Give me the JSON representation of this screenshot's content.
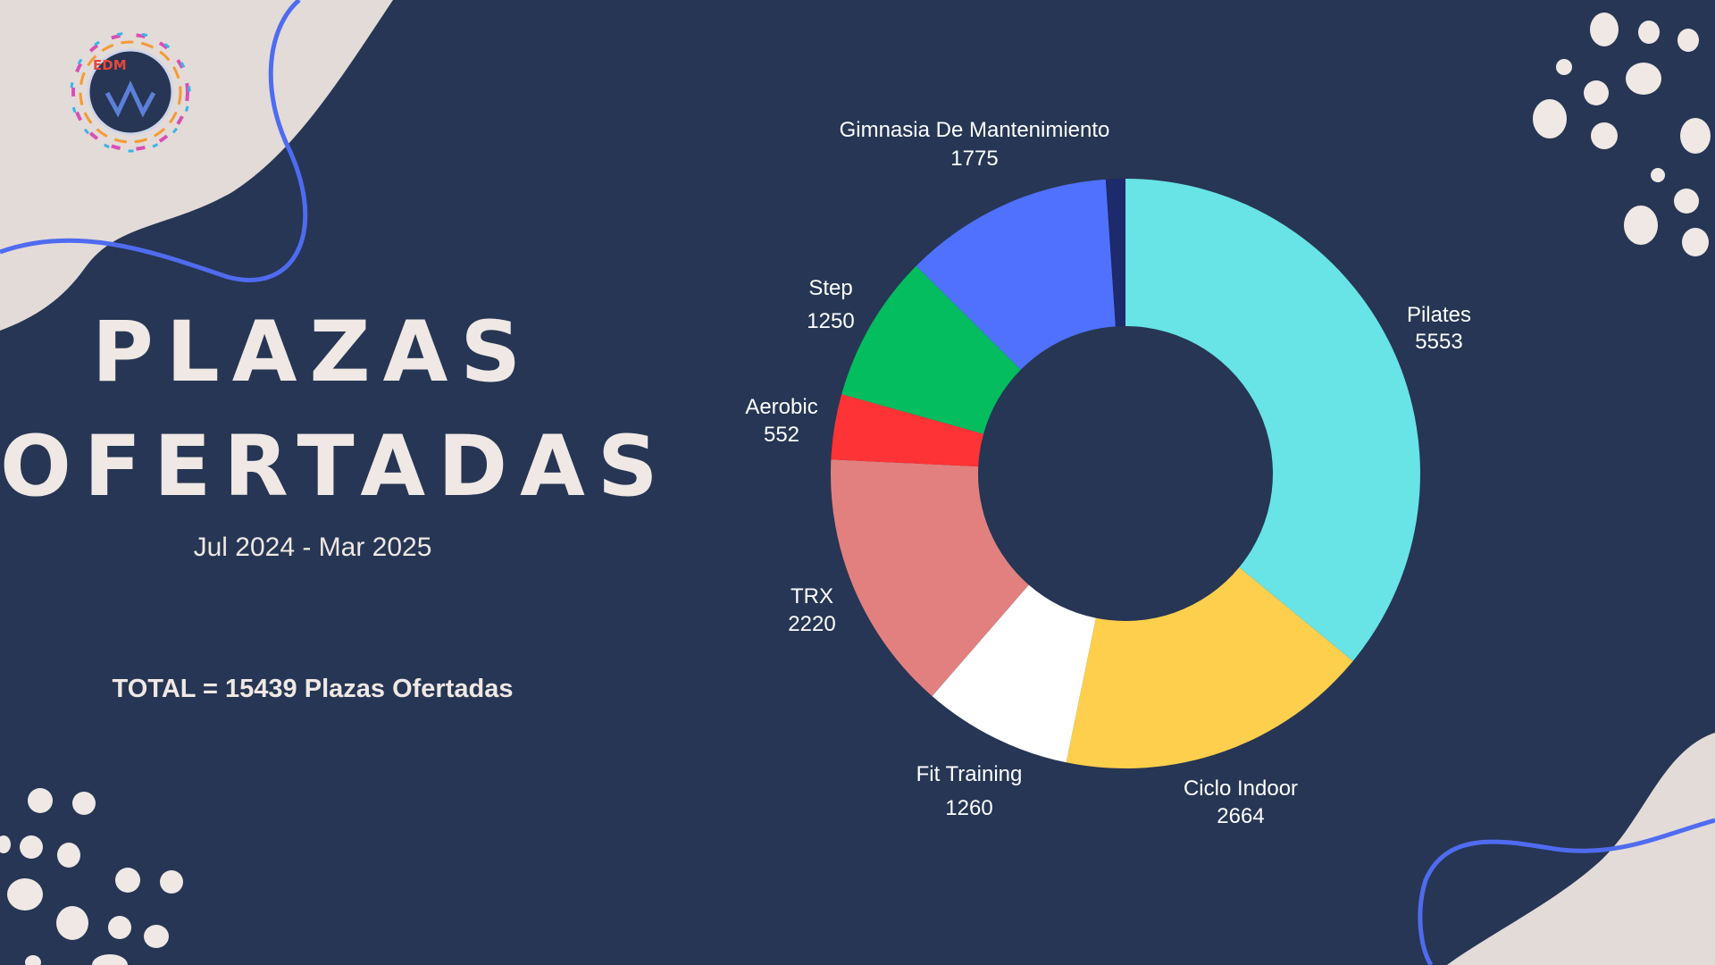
{
  "slide": {
    "title_line1": "PLAZAS",
    "title_line2": "OFERTADAS",
    "period": "Jul 2024 - Mar 2025",
    "total": "TOTAL = 15439 Plazas Ofertadas",
    "logo_text": "EDM",
    "background_color": "#263654",
    "accent_color": "#4f6bf0",
    "blob_color": "#e3dbd8"
  },
  "chart_data": {
    "type": "pie",
    "style": "donut",
    "categories": [
      "Pilates",
      "Ciclo Indoor",
      "Fit Training",
      "TRX",
      "Aerobic",
      "Step",
      "Gimnasia De Mantenimiento",
      ""
    ],
    "values": [
      5553,
      2664,
      1260,
      2220,
      552,
      1250,
      1775,
      165
    ],
    "labels": [
      "5553",
      "2664",
      "1260",
      "2220",
      "552",
      "1250",
      "1775",
      ""
    ],
    "colors": [
      "#68e3e6",
      "#fecf4c",
      "#ffffff",
      "#e28080",
      "#fe3335",
      "#03bd5f",
      "#4f71fd",
      "#1d2a6b"
    ]
  }
}
